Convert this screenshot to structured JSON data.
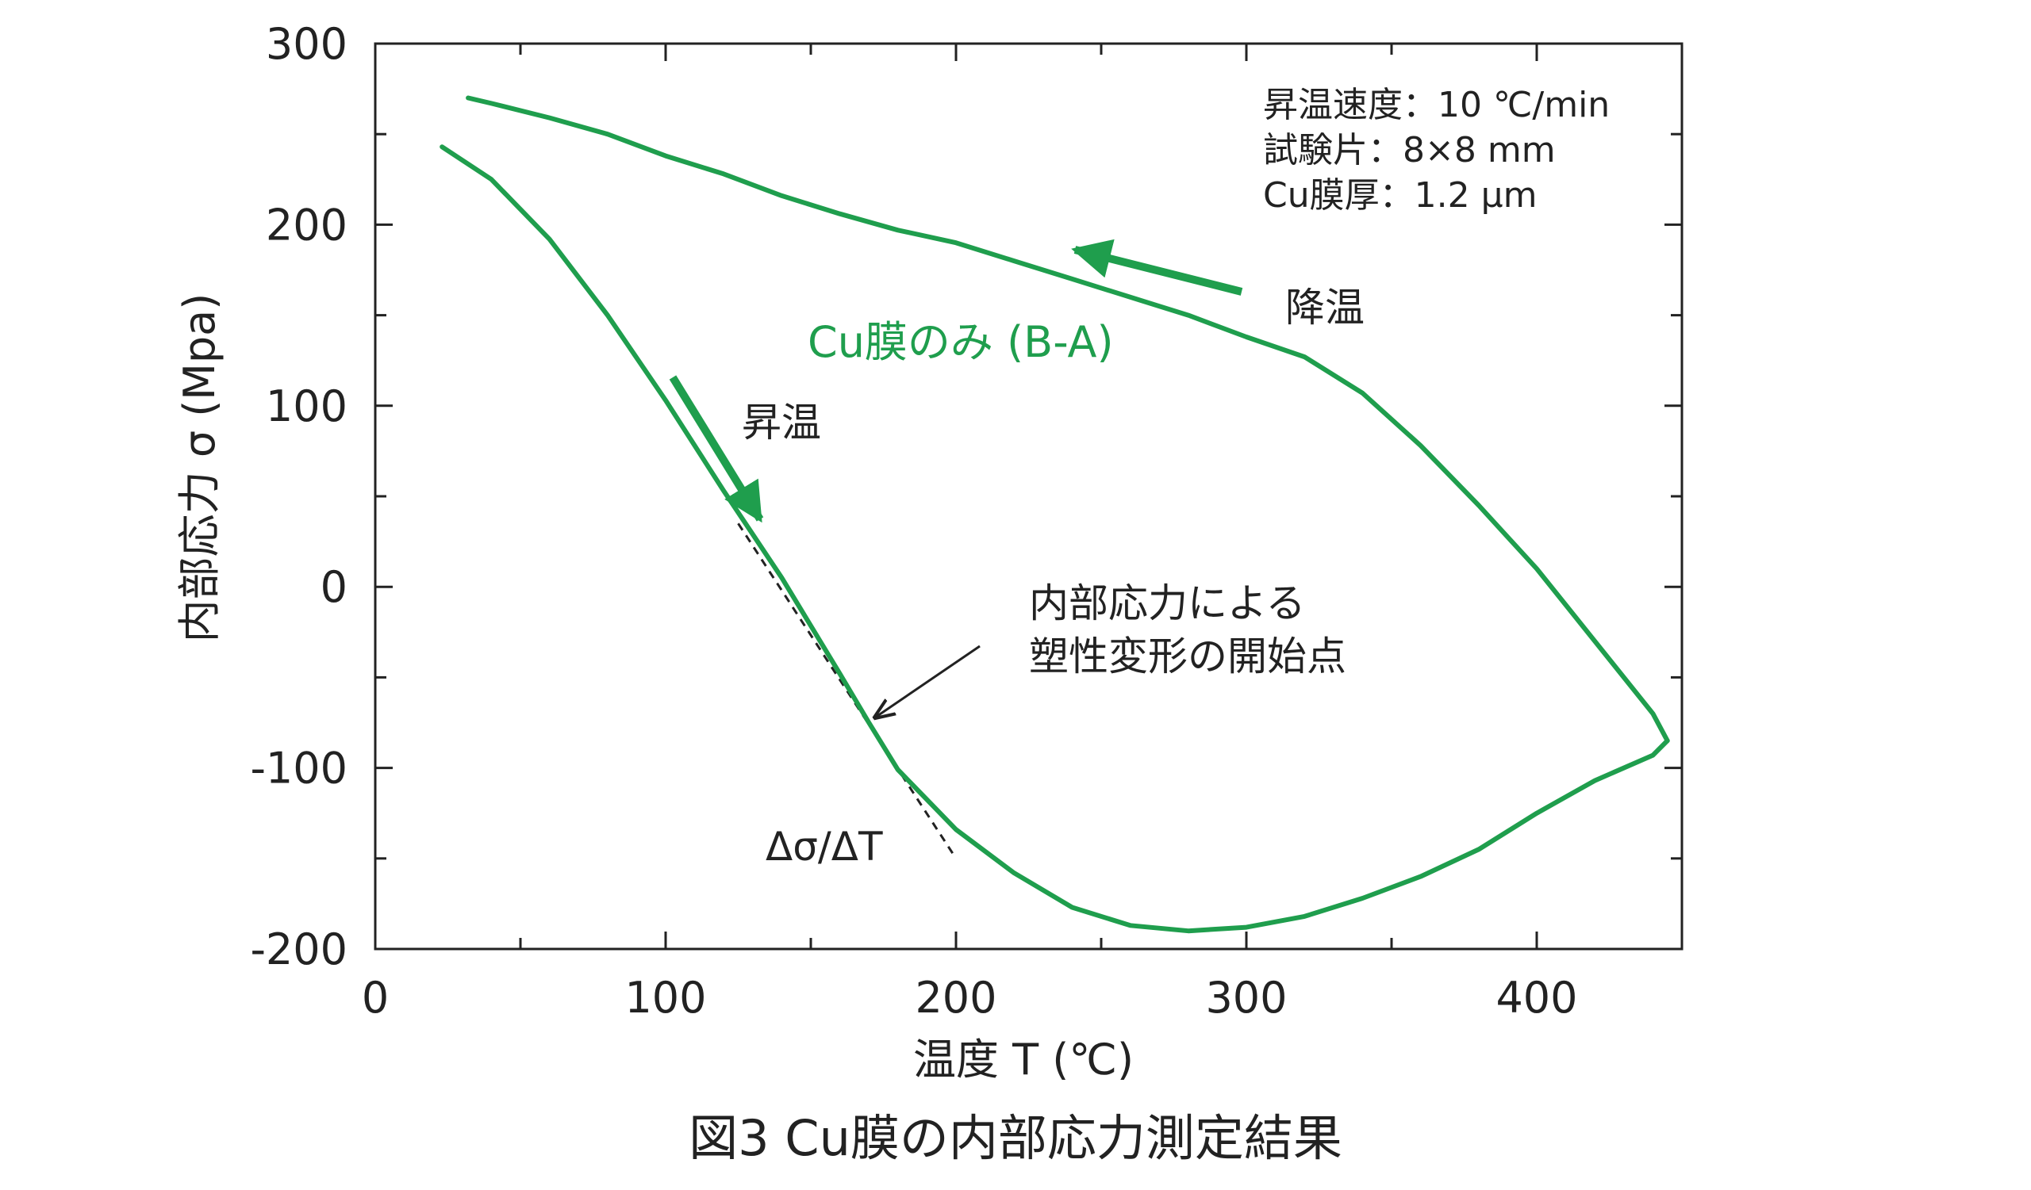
{
  "caption": "図3 Cu膜の内部応力測定結果",
  "chart_data": {
    "type": "line",
    "xlabel": "温度 T (℃)",
    "ylabel": "内部応力 σ (Mpa)",
    "xlim": [
      0,
      450
    ],
    "ylim": [
      -200,
      300
    ],
    "xticks": [
      0,
      100,
      200,
      300,
      400
    ],
    "yticks": [
      300,
      200,
      100,
      0,
      -100,
      -200
    ],
    "grid": false,
    "conditions": [
      "昇温速度：10 ℃/min",
      "試験片：8×8 mm",
      "Cu膜厚：1.2 μm"
    ],
    "series_label": "Cu膜のみ (B-A)",
    "series_color": "#1f9e4d",
    "series": [
      {
        "name": "",
        "x": [
          23,
          40,
          60,
          80,
          100,
          120,
          140,
          160,
          170,
          180,
          200,
          220,
          240,
          260,
          280,
          300,
          320,
          340,
          360,
          380,
          400,
          420,
          440,
          445
        ],
        "y": [
          243,
          225,
          192,
          150,
          103,
          53,
          5,
          -48,
          -75,
          -101,
          -134,
          -158,
          -177,
          -187,
          -190,
          -188,
          -182,
          -172,
          -160,
          -145,
          -125,
          -107,
          -93,
          -85
        ]
      },
      {
        "name": "",
        "x": [
          445,
          440,
          420,
          400,
          380,
          360,
          340,
          320,
          300,
          280,
          260,
          240,
          220,
          200,
          180,
          160,
          140,
          120,
          100,
          80,
          60,
          40,
          32
        ],
        "y": [
          -85,
          -70,
          -30,
          10,
          45,
          78,
          107,
          127,
          138,
          150,
          160,
          170,
          180,
          190,
          197,
          206,
          216,
          228,
          238,
          250,
          259,
          267,
          270
        ]
      }
    ],
    "tangent_line": {
      "x": [
        125,
        200
      ],
      "y": [
        35,
        -150
      ],
      "label": "Δσ/ΔT"
    },
    "annotations": [
      {
        "text": "降温"
      },
      {
        "text": "昇温"
      },
      {
        "text": "内部応力による"
      },
      {
        "text": "塑性変形の開始点"
      }
    ]
  }
}
